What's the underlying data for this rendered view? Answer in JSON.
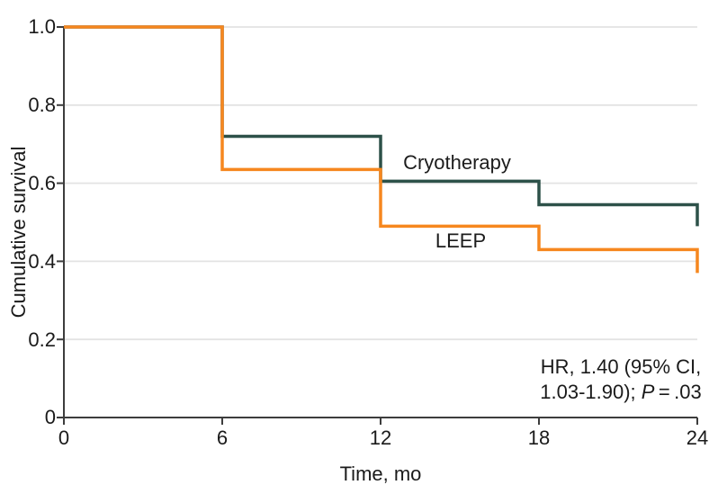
{
  "chart_data": {
    "type": "line",
    "subtype": "kaplan-meier-step",
    "title": "",
    "xlabel": "Time, mo",
    "ylabel": "Cumulative survival",
    "xlim": [
      0,
      24
    ],
    "ylim": [
      0,
      1.0
    ],
    "x_ticks": [
      0,
      6,
      12,
      18,
      24
    ],
    "x_tick_labels": [
      "0",
      "6",
      "12",
      "18",
      "24"
    ],
    "y_ticks": [
      0,
      0.2,
      0.4,
      0.6,
      0.8,
      1.0
    ],
    "y_tick_labels": [
      "0",
      "0.2",
      "0.4",
      "0.6",
      "0.8",
      "1.0"
    ],
    "grid": "horizontal-only",
    "gridline_color": "#e3e3e3",
    "axis_color": "#3d3d3d",
    "legend_position": "inline-curve-labels",
    "series": [
      {
        "name": "Cryotherapy",
        "color": "#2d5149",
        "times": [
          0,
          6,
          12,
          18,
          24
        ],
        "survival": [
          1.0,
          0.72,
          0.605,
          0.545,
          0.49
        ]
      },
      {
        "name": "LEEP",
        "color": "#f6871f",
        "times": [
          0,
          6,
          12,
          18,
          24
        ],
        "survival": [
          1.0,
          0.635,
          0.49,
          0.43,
          0.37
        ]
      }
    ],
    "annotation": {
      "line1": "HR, 1.40 (95% CI,",
      "line2_pre": "1.03-1.90); ",
      "line2_italic": "P",
      "line2_post": " = .03"
    }
  }
}
